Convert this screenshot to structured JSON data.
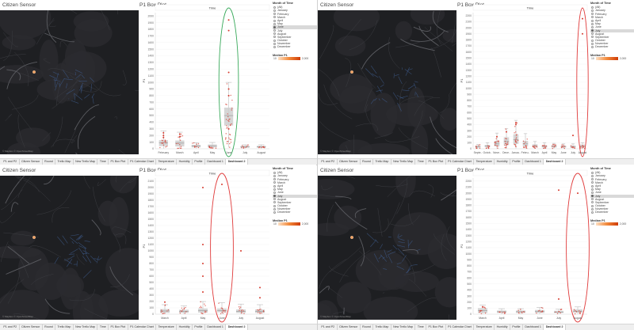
{
  "titles": {
    "map": "Citizen Sensor",
    "plot": "P1 Box Plot",
    "column_header": "Time",
    "y_axis": "P1"
  },
  "map_credit": "© Mapbox © OpenStreetMap",
  "legend": {
    "title": "Month of Time",
    "items": [
      "(All)",
      "January",
      "February",
      "March",
      "April",
      "May",
      "June",
      "July",
      "August",
      "September",
      "October",
      "November",
      "December"
    ],
    "color_title": "Median P1",
    "color_min": "10",
    "color_max": "2,000"
  },
  "tabs": [
    "P1 and P2",
    "Citizen Sensor",
    "Round",
    "Trello Map",
    "New Trello Map",
    "Time",
    "P1 Box Plot",
    "P1 Calendar Chart",
    "Temperature",
    "Humidity",
    "Profile",
    "Dashboard 1",
    "Dashboard 2"
  ],
  "active_tab": "Dashboard 2",
  "colors": {
    "box": "#cfcfcf",
    "point": "#d63a2e",
    "highlight_green": "#3aaa5c",
    "highlight_red": "#e03a3a",
    "map_bg": "#1e1f22"
  },
  "panels": [
    {
      "selected_month": "June",
      "highlight": "green",
      "y_ticks": [
        "0",
        "100",
        "200",
        "300",
        "400",
        "500",
        "600",
        "700",
        "800",
        "900",
        "1000",
        "1100",
        "1200",
        "1300",
        "1400",
        "1500",
        "1600",
        "1700",
        "1800",
        "1900",
        "2000"
      ],
      "chart_data": {
        "type": "box",
        "categories": [
          "February",
          "March",
          "April",
          "May",
          "June",
          "July",
          "August"
        ],
        "ylim": [
          0,
          2050
        ],
        "ylabel": "P1",
        "highlighted_category": "June",
        "boxes": [
          {
            "q1": 40,
            "median": 90,
            "q3": 130,
            "whisker_low": 5,
            "whisker_high": 270,
            "outliers": [
              170,
              200,
              240
            ]
          },
          {
            "q1": 35,
            "median": 85,
            "q3": 125,
            "whisker_low": 5,
            "whisker_high": 250,
            "outliers": [
              180,
              220
            ]
          },
          {
            "q1": 20,
            "median": 40,
            "q3": 60,
            "whisker_low": 5,
            "whisker_high": 90,
            "outliers": []
          },
          {
            "q1": 20,
            "median": 45,
            "q3": 65,
            "whisker_low": 5,
            "whisker_high": 95,
            "outliers": []
          },
          {
            "q1": 350,
            "median": 500,
            "q3": 620,
            "whisker_low": 20,
            "whisker_high": 1000,
            "outliers": [
              1780,
              1940,
              1150,
              900,
              800,
              300
            ]
          },
          {
            "q1": 15,
            "median": 30,
            "q3": 45,
            "whisker_low": 5,
            "whisker_high": 60,
            "outliers": []
          },
          {
            "q1": 15,
            "median": 30,
            "q3": 45,
            "whisker_low": 5,
            "whisker_high": 60,
            "outliers": []
          }
        ]
      }
    },
    {
      "selected_month": "July",
      "highlight": "red",
      "y_ticks": [
        "0",
        "100",
        "200",
        "300",
        "400",
        "500",
        "600",
        "700",
        "800",
        "900",
        "1000",
        "1100",
        "1200",
        "1300",
        "1400",
        "1500",
        "1600",
        "1700",
        "1800",
        "1900",
        "2000",
        "2100",
        "2200"
      ],
      "chart_data": {
        "type": "box",
        "categories": [
          "Septe..",
          "Octob..",
          "Nove..",
          "Dece..",
          "Janua..",
          "Febru..",
          "March",
          "April",
          "May",
          "June",
          "July",
          "August"
        ],
        "ylim": [
          0,
          2250
        ],
        "ylabel": "P1",
        "highlighted_category": "August",
        "boxes": [
          {
            "q1": 20,
            "median": 35,
            "q3": 50,
            "whisker_low": 5,
            "whisker_high": 70,
            "outliers": []
          },
          {
            "q1": 25,
            "median": 45,
            "q3": 65,
            "whisker_low": 5,
            "whisker_high": 100,
            "outliers": []
          },
          {
            "q1": 40,
            "median": 80,
            "q3": 130,
            "whisker_low": 5,
            "whisker_high": 260,
            "outliers": [
              200
            ]
          },
          {
            "q1": 60,
            "median": 120,
            "q3": 190,
            "whisker_low": 5,
            "whisker_high": 330,
            "outliers": [
              280
            ]
          },
          {
            "q1": 80,
            "median": 150,
            "q3": 240,
            "whisker_low": 5,
            "whisker_high": 470,
            "outliers": [
              400,
              430
            ]
          },
          {
            "q1": 40,
            "median": 80,
            "q3": 130,
            "whisker_low": 5,
            "whisker_high": 250,
            "outliers": []
          },
          {
            "q1": 25,
            "median": 50,
            "q3": 75,
            "whisker_low": 5,
            "whisker_high": 120,
            "outliers": []
          },
          {
            "q1": 20,
            "median": 40,
            "q3": 60,
            "whisker_low": 5,
            "whisker_high": 100,
            "outliers": []
          },
          {
            "q1": 20,
            "median": 40,
            "q3": 60,
            "whisker_low": 5,
            "whisker_high": 90,
            "outliers": []
          },
          {
            "q1": 20,
            "median": 35,
            "q3": 55,
            "whisker_low": 5,
            "whisker_high": 80,
            "outliers": []
          },
          {
            "q1": 20,
            "median": 35,
            "q3": 55,
            "whisker_low": 5,
            "whisker_high": 80,
            "outliers": [
              220
            ]
          },
          {
            "q1": 20,
            "median": 40,
            "q3": 70,
            "whisker_low": 5,
            "whisker_high": 100,
            "outliers": [
              2150,
              1900
            ]
          }
        ]
      }
    },
    {
      "selected_month": "July",
      "highlight": "red",
      "y_ticks": [
        "0",
        "100",
        "200",
        "300",
        "400",
        "500",
        "600",
        "700",
        "800",
        "900",
        "1000",
        "1100",
        "1200",
        "1300",
        "1400",
        "1500",
        "1600",
        "1700",
        "1800",
        "1900",
        "2000",
        "2100"
      ],
      "chart_data": {
        "type": "box",
        "categories": [
          "March",
          "April",
          "May",
          "June",
          "July",
          "August"
        ],
        "ylim": [
          0,
          2150
        ],
        "ylabel": "P1",
        "highlighted_category": "June",
        "boxes": [
          {
            "q1": 20,
            "median": 50,
            "q3": 80,
            "whisker_low": 5,
            "whisker_high": 150,
            "outliers": [
              190
            ]
          },
          {
            "q1": 20,
            "median": 45,
            "q3": 70,
            "whisker_low": 5,
            "whisker_high": 130,
            "outliers": []
          },
          {
            "q1": 25,
            "median": 55,
            "q3": 90,
            "whisker_low": 5,
            "whisker_high": 200,
            "outliers": [
              2000,
              1100,
              800,
              600,
              350
            ]
          },
          {
            "q1": 30,
            "median": 55,
            "q3": 90,
            "whisker_low": 5,
            "whisker_high": 180,
            "outliers": [
              2050
            ]
          },
          {
            "q1": 20,
            "median": 45,
            "q3": 75,
            "whisker_low": 5,
            "whisker_high": 160,
            "outliers": [
              1000
            ]
          },
          {
            "q1": 20,
            "median": 45,
            "q3": 75,
            "whisker_low": 5,
            "whisker_high": 150,
            "outliers": [
              420,
              260
            ]
          }
        ]
      }
    },
    {
      "selected_month": "July",
      "highlight": "red",
      "y_ticks": [
        "0",
        "100",
        "200",
        "300",
        "400",
        "500",
        "600",
        "700",
        "800",
        "900",
        "1000",
        "1100",
        "1200",
        "1300",
        "1400",
        "1500",
        "1600",
        "1700",
        "1800",
        "1900",
        "2000",
        "2100",
        "2200"
      ],
      "chart_data": {
        "type": "box",
        "categories": [
          "March",
          "April",
          "May",
          "June",
          "July",
          "August"
        ],
        "ylim": [
          0,
          2250
        ],
        "ylabel": "P1",
        "highlighted_category": "August",
        "boxes": [
          {
            "q1": 20,
            "median": 60,
            "q3": 100,
            "whisker_low": 5,
            "whisker_high": 150,
            "outliers": [
              120
            ]
          },
          {
            "q1": 20,
            "median": 40,
            "q3": 60,
            "whisker_low": 5,
            "whisker_high": 90,
            "outliers": []
          },
          {
            "q1": 20,
            "median": 40,
            "q3": 60,
            "whisker_low": 5,
            "whisker_high": 90,
            "outliers": []
          },
          {
            "q1": 20,
            "median": 45,
            "q3": 70,
            "whisker_low": 5,
            "whisker_high": 110,
            "outliers": []
          },
          {
            "q1": 20,
            "median": 35,
            "q3": 55,
            "whisker_low": 5,
            "whisker_high": 80,
            "outliers": [
              2050,
              250
            ]
          },
          {
            "q1": 25,
            "median": 50,
            "q3": 80,
            "whisker_low": 5,
            "whisker_high": 120,
            "outliers": [
              2000
            ]
          }
        ]
      }
    }
  ]
}
